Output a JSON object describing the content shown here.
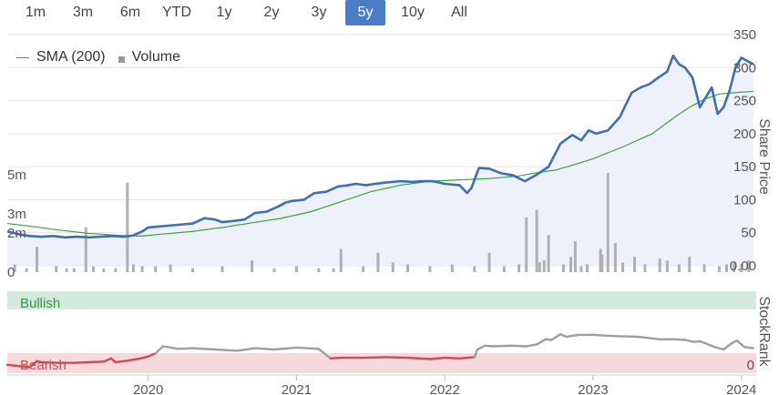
{
  "ranges": {
    "buttons": [
      "1m",
      "3m",
      "6m",
      "YTD",
      "1y",
      "2y",
      "3y",
      "5y",
      "10y",
      "All"
    ],
    "active": "5y"
  },
  "legend": {
    "sma": "SMA (200)",
    "volume": "Volume"
  },
  "colors": {
    "price": "#3f6eb5",
    "sma": "#3aa23a",
    "volume": "#b0b0b0",
    "area": "#eef1fa",
    "bullish_band": "#d4eadc",
    "bearish_band": "#f6d9db",
    "stockrank_high": "#9e9e9e",
    "stockrank_low": "#d04a55",
    "active_button": "#4b7dc4"
  },
  "chart_data": [
    {
      "type": "line",
      "ylabel": "Share Price",
      "y_ticks": [
        "350",
        "300",
        "250",
        "200",
        "150",
        "100",
        "50",
        "0.00"
      ],
      "ylim": [
        0,
        350
      ],
      "x_ticks": [
        "2020",
        "2021",
        "2022",
        "2023",
        "2024"
      ],
      "x_tick_values": [
        2020.0,
        2021.0,
        2022.0,
        2023.0,
        2024.0
      ],
      "xlim": [
        2019.05,
        2024.1
      ],
      "series": [
        {
          "name": "Share Price",
          "x": [
            2019.05,
            2019.12,
            2019.2,
            2019.28,
            2019.36,
            2019.44,
            2019.52,
            2019.6,
            2019.68,
            2019.76,
            2019.84,
            2019.9,
            2019.96,
            2020.0,
            2020.1,
            2020.2,
            2020.3,
            2020.38,
            2020.45,
            2020.5,
            2020.58,
            2020.65,
            2020.72,
            2020.8,
            2020.88,
            2020.93,
            2020.97,
            2021.05,
            2021.12,
            2021.2,
            2021.28,
            2021.35,
            2021.4,
            2021.47,
            2021.53,
            2021.6,
            2021.7,
            2021.78,
            2021.85,
            2021.92,
            2022.0,
            2022.1,
            2022.15,
            2022.18,
            2022.23,
            2022.3,
            2022.38,
            2022.46,
            2022.54,
            2022.58,
            2022.62,
            2022.7,
            2022.78,
            2022.86,
            2022.92,
            2022.97,
            2023.02,
            2023.1,
            2023.18,
            2023.26,
            2023.32,
            2023.38,
            2023.44,
            2023.5,
            2023.54,
            2023.58,
            2023.62,
            2023.67,
            2023.72,
            2023.76,
            2023.8,
            2023.84,
            2023.88,
            2023.92,
            2023.96,
            2024.0,
            2024.04,
            2024.08
          ],
          "values": [
            52,
            48,
            45,
            44,
            45,
            43,
            44,
            43,
            44,
            45,
            44,
            46,
            52,
            58,
            60,
            62,
            64,
            72,
            70,
            66,
            68,
            70,
            80,
            82,
            90,
            96,
            98,
            100,
            110,
            112,
            120,
            122,
            124,
            122,
            124,
            126,
            128,
            127,
            128,
            128,
            124,
            122,
            110,
            118,
            148,
            147,
            140,
            137,
            128,
            133,
            138,
            150,
            185,
            198,
            190,
            205,
            200,
            205,
            225,
            262,
            270,
            275,
            285,
            294,
            318,
            305,
            300,
            285,
            240,
            255,
            270,
            230,
            240,
            265,
            300,
            315,
            310,
            305
          ]
        },
        {
          "name": "SMA (200)",
          "x": [
            2019.05,
            2019.2,
            2019.4,
            2019.6,
            2019.8,
            2019.95,
            2020.1,
            2020.3,
            2020.5,
            2020.7,
            2020.9,
            2021.1,
            2021.3,
            2021.5,
            2021.7,
            2021.9,
            2022.1,
            2022.3,
            2022.5,
            2022.6,
            2022.75,
            2022.9,
            2023.0,
            2023.2,
            2023.4,
            2023.55,
            2023.65,
            2023.75,
            2023.85,
            2023.95,
            2024.08
          ],
          "values": [
            64,
            60,
            54,
            49,
            46,
            45,
            48,
            52,
            58,
            65,
            72,
            82,
            97,
            112,
            122,
            128,
            130,
            132,
            136,
            140,
            145,
            155,
            162,
            180,
            200,
            225,
            240,
            252,
            260,
            262,
            264
          ]
        }
      ]
    },
    {
      "type": "bar",
      "y_ticks": [
        "5m",
        "3m",
        "2m",
        "0"
      ],
      "ylim": [
        0,
        6.5
      ],
      "series": [
        {
          "name": "Volume",
          "x": [
            2019.1,
            2019.18,
            2019.25,
            2019.38,
            2019.45,
            2019.5,
            2019.58,
            2019.63,
            2019.7,
            2019.78,
            2019.86,
            2019.9,
            2019.96,
            2020.05,
            2020.15,
            2020.3,
            2020.5,
            2020.7,
            2020.85,
            2021.0,
            2021.15,
            2021.25,
            2021.3,
            2021.45,
            2021.55,
            2021.65,
            2021.75,
            2021.9,
            2022.05,
            2022.2,
            2022.3,
            2022.4,
            2022.5,
            2022.55,
            2022.62,
            2022.64,
            2022.67,
            2022.7,
            2022.8,
            2022.85,
            2022.88,
            2022.92,
            2022.96,
            2023.05,
            2023.06,
            2023.1,
            2023.15,
            2023.2,
            2023.28,
            2023.35,
            2023.45,
            2023.5,
            2023.58,
            2023.65,
            2023.75,
            2023.85,
            2023.9,
            2023.95,
            2024.0,
            2024.05
          ],
          "values": [
            0.4,
            0.2,
            1.3,
            0.3,
            0.2,
            0.2,
            2.3,
            0.3,
            0.2,
            0.2,
            4.6,
            0.4,
            0.3,
            0.3,
            0.4,
            0.2,
            0.3,
            0.6,
            0.2,
            0.3,
            0.2,
            0.2,
            1.2,
            0.3,
            1.0,
            0.5,
            0.4,
            0.3,
            0.4,
            0.3,
            1.0,
            0.3,
            0.4,
            2.8,
            3.2,
            0.5,
            0.6,
            1.9,
            0.4,
            0.8,
            1.6,
            0.3,
            0.4,
            1.2,
            0.9,
            5.1,
            1.5,
            0.5,
            0.8,
            0.4,
            0.7,
            0.6,
            0.4,
            0.8,
            0.4,
            0.3,
            0.4,
            0.5,
            0.4,
            0.6
          ]
        }
      ]
    },
    {
      "type": "line",
      "ylabel": "StockRank",
      "bands": [
        "Bullish",
        "Bearish"
      ],
      "y_ticks": [
        "0"
      ],
      "ylim": [
        0,
        100
      ],
      "series": [
        {
          "name": "StockRank",
          "x": [
            2019.05,
            2019.2,
            2019.25,
            2019.28,
            2019.4,
            2019.5,
            2019.6,
            2019.7,
            2019.75,
            2019.78,
            2019.85,
            2019.95,
            2020.0,
            2020.05,
            2020.1,
            2020.2,
            2020.3,
            2020.45,
            2020.6,
            2020.72,
            2020.85,
            2021.0,
            2021.15,
            2021.23,
            2021.3,
            2021.45,
            2021.6,
            2021.75,
            2021.9,
            2022.0,
            2022.1,
            2022.2,
            2022.22,
            2022.27,
            2022.32,
            2022.45,
            2022.55,
            2022.62,
            2022.68,
            2022.72,
            2022.78,
            2022.82,
            2022.9,
            2023.0,
            2023.15,
            2023.3,
            2023.45,
            2023.55,
            2023.62,
            2023.68,
            2023.72,
            2023.82,
            2023.88,
            2023.93,
            2023.97,
            2024.02,
            2024.08
          ],
          "values": [
            16,
            12,
            22,
            20,
            19,
            19,
            20,
            21,
            26,
            20,
            22,
            26,
            29,
            34,
            45,
            41,
            42,
            40,
            38,
            42,
            40,
            43,
            41,
            26,
            27,
            27,
            28,
            27,
            25,
            27,
            26,
            28,
            40,
            46,
            45,
            46,
            45,
            48,
            56,
            55,
            64,
            60,
            63,
            63,
            61,
            60,
            56,
            56,
            55,
            52,
            53,
            44,
            40,
            49,
            54,
            44,
            42
          ]
        }
      ]
    }
  ]
}
